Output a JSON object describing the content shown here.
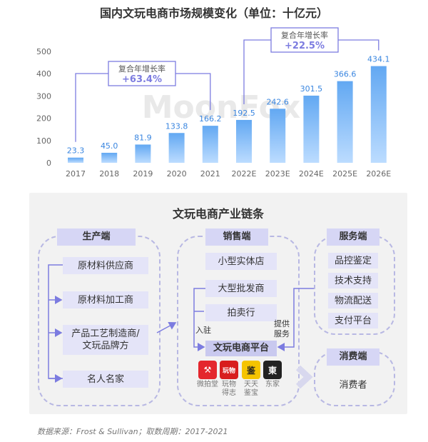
{
  "chart_data": {
    "type": "bar",
    "title": "国内文玩电商市场规模变化（单位：十亿元）",
    "categories": [
      "2017",
      "2018",
      "2019",
      "2020",
      "2021",
      "2022E",
      "2023E",
      "2024E",
      "2025E",
      "2026E"
    ],
    "values": [
      23.3,
      45.0,
      81.9,
      133.8,
      166.2,
      192.5,
      242.6,
      301.5,
      366.6,
      434.1
    ],
    "value_labels": [
      "23.3",
      "45.0",
      "81.9",
      "133.8",
      "166.2",
      "192.5",
      "242.6",
      "301.5",
      "366.6",
      "434.1"
    ],
    "yticks": [
      "0",
      "100",
      "200",
      "300",
      "400",
      "500"
    ],
    "ylim": [
      0,
      500
    ],
    "grid": false,
    "colors": {
      "bar_top": "#62a8f2",
      "bar_bottom": "#bcdcff",
      "label": "#3a86e0",
      "bracket": "#7c7ce0"
    },
    "annotations": [
      {
        "label": "复合年增长率",
        "value": "+63.4%",
        "from": "2017",
        "to": "2021"
      },
      {
        "label": "复合年增长率",
        "value": "+22.5%",
        "from": "2022E",
        "to": "2026E"
      }
    ],
    "watermark": "MoonFox"
  },
  "diagram": {
    "title": "文玩电商产业链条",
    "production": {
      "header": "生产端",
      "items": [
        "原材料供应商",
        "原材料加工商",
        "产品工艺制造商/\n文玩品牌方",
        "名人名家"
      ]
    },
    "sales": {
      "header": "销售端",
      "items": [
        "小型实体店",
        "大型批发商",
        "拍卖行"
      ],
      "platform": "文玩电商平台",
      "entry_label": "入驻",
      "service_label": "提供\n服务",
      "apps": [
        {
          "name": "微拍堂",
          "icon": "hammer-icon",
          "color": "#e4262d"
        },
        {
          "name": "玩物\n得志",
          "icon": "wanwu-icon",
          "color": "#d81e1e"
        },
        {
          "name": "天天\n鉴宝",
          "icon": "jian-icon",
          "color": "#f5c400"
        },
        {
          "name": "东家",
          "icon": "dong-icon",
          "color": "#222222"
        }
      ]
    },
    "services": {
      "header": "服务端",
      "items": [
        "品控鉴定",
        "技术支持",
        "物流配送",
        "支付平台"
      ]
    },
    "consumer": {
      "header": "消费端",
      "item": "消费者"
    }
  },
  "source": "数据来源：Frost & Sullivan；取数周期：2017-2021"
}
